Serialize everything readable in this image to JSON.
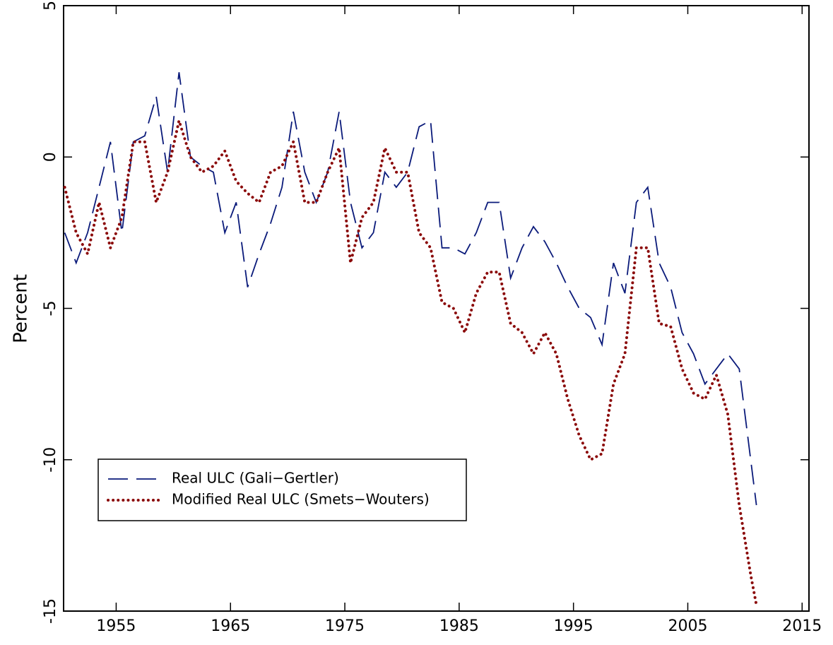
{
  "chart_data": {
    "type": "line",
    "y_label": "Percent",
    "x": [
      1950.5,
      1951.5,
      1952.5,
      1953.5,
      1954.5,
      1955.5,
      1956.5,
      1957.5,
      1958.5,
      1959.5,
      1960.5,
      1961.5,
      1962.5,
      1963.5,
      1964.5,
      1965.5,
      1966.5,
      1967.5,
      1968.5,
      1969.5,
      1970.5,
      1971.5,
      1972.5,
      1973.5,
      1974.5,
      1975.5,
      1976.5,
      1977.5,
      1978.5,
      1979.5,
      1980.5,
      1981.5,
      1982.5,
      1983.5,
      1984.5,
      1985.5,
      1986.5,
      1987.5,
      1988.5,
      1989.5,
      1990.5,
      1991.5,
      1992.5,
      1993.5,
      1994.5,
      1995.5,
      1996.5,
      1997.5,
      1998.5,
      1999.5,
      2000.5,
      2001.5,
      2002.5,
      2003.5,
      2004.5,
      2005.5,
      2006.5,
      2007.5,
      2008.5,
      2009.5,
      2010.5,
      2011
    ],
    "series": [
      {
        "name": "Real ULC (Gali−Gertler)",
        "color": "#0a1a7a",
        "style": "dashed",
        "values": [
          -2.5,
          -3.5,
          -2.5,
          -1,
          0.5,
          -2.5,
          0.5,
          0.7,
          2,
          -0.5,
          2.8,
          0,
          -0.3,
          -0.5,
          -2.5,
          -1.5,
          -4.3,
          -3.2,
          -2.2,
          -1,
          1.5,
          -0.5,
          -1.5,
          -0.5,
          1.5,
          -1.5,
          -3,
          -2.5,
          -0.5,
          -1,
          -0.5,
          1,
          1.2,
          -3,
          -3,
          -3.2,
          -2.5,
          -1.5,
          -1.5,
          -4,
          -3,
          -2.3,
          -2.8,
          -3.5,
          -4.3,
          -5,
          -5.3,
          -6.2,
          -3.5,
          -4.5,
          -1.5,
          -1,
          -3.5,
          -4.3,
          -5.8,
          -6.5,
          -7.5,
          -7,
          -6.5,
          -7,
          -10,
          -11.5
        ]
      },
      {
        "name": "Modified Real ULC (Smets−Wouters)",
        "color": "#8b0a0a",
        "style": "dotted",
        "values": [
          -1,
          -2.5,
          -3.2,
          -1.5,
          -3,
          -2,
          0.5,
          0.5,
          -1.5,
          -0.5,
          1.2,
          0,
          -0.5,
          -0.3,
          0.2,
          -0.8,
          -1.2,
          -1.5,
          -0.5,
          -0.3,
          0.5,
          -1.5,
          -1.5,
          -0.5,
          0.3,
          -3.5,
          -2,
          -1.5,
          0.3,
          -0.5,
          -0.5,
          -2.5,
          -3,
          -4.8,
          -5,
          -5.8,
          -4.5,
          -3.8,
          -3.8,
          -5.5,
          -5.8,
          -6.5,
          -5.8,
          -6.5,
          -8,
          -9.2,
          -10,
          -9.8,
          -7.5,
          -6.5,
          -3,
          -3,
          -5.5,
          -5.6,
          -7,
          -7.8,
          -8,
          -7.2,
          -8.5,
          -11.5,
          -13.8,
          -14.8
        ]
      }
    ],
    "xlim": [
      1950.4,
      2015.6
    ],
    "xticks": [
      1955,
      1965,
      1975,
      1985,
      1995,
      2005,
      2015
    ],
    "ylim": [
      -15,
      5
    ],
    "yticks": [
      -15,
      -10,
      -5,
      0,
      5
    ],
    "legend": "lower left"
  }
}
